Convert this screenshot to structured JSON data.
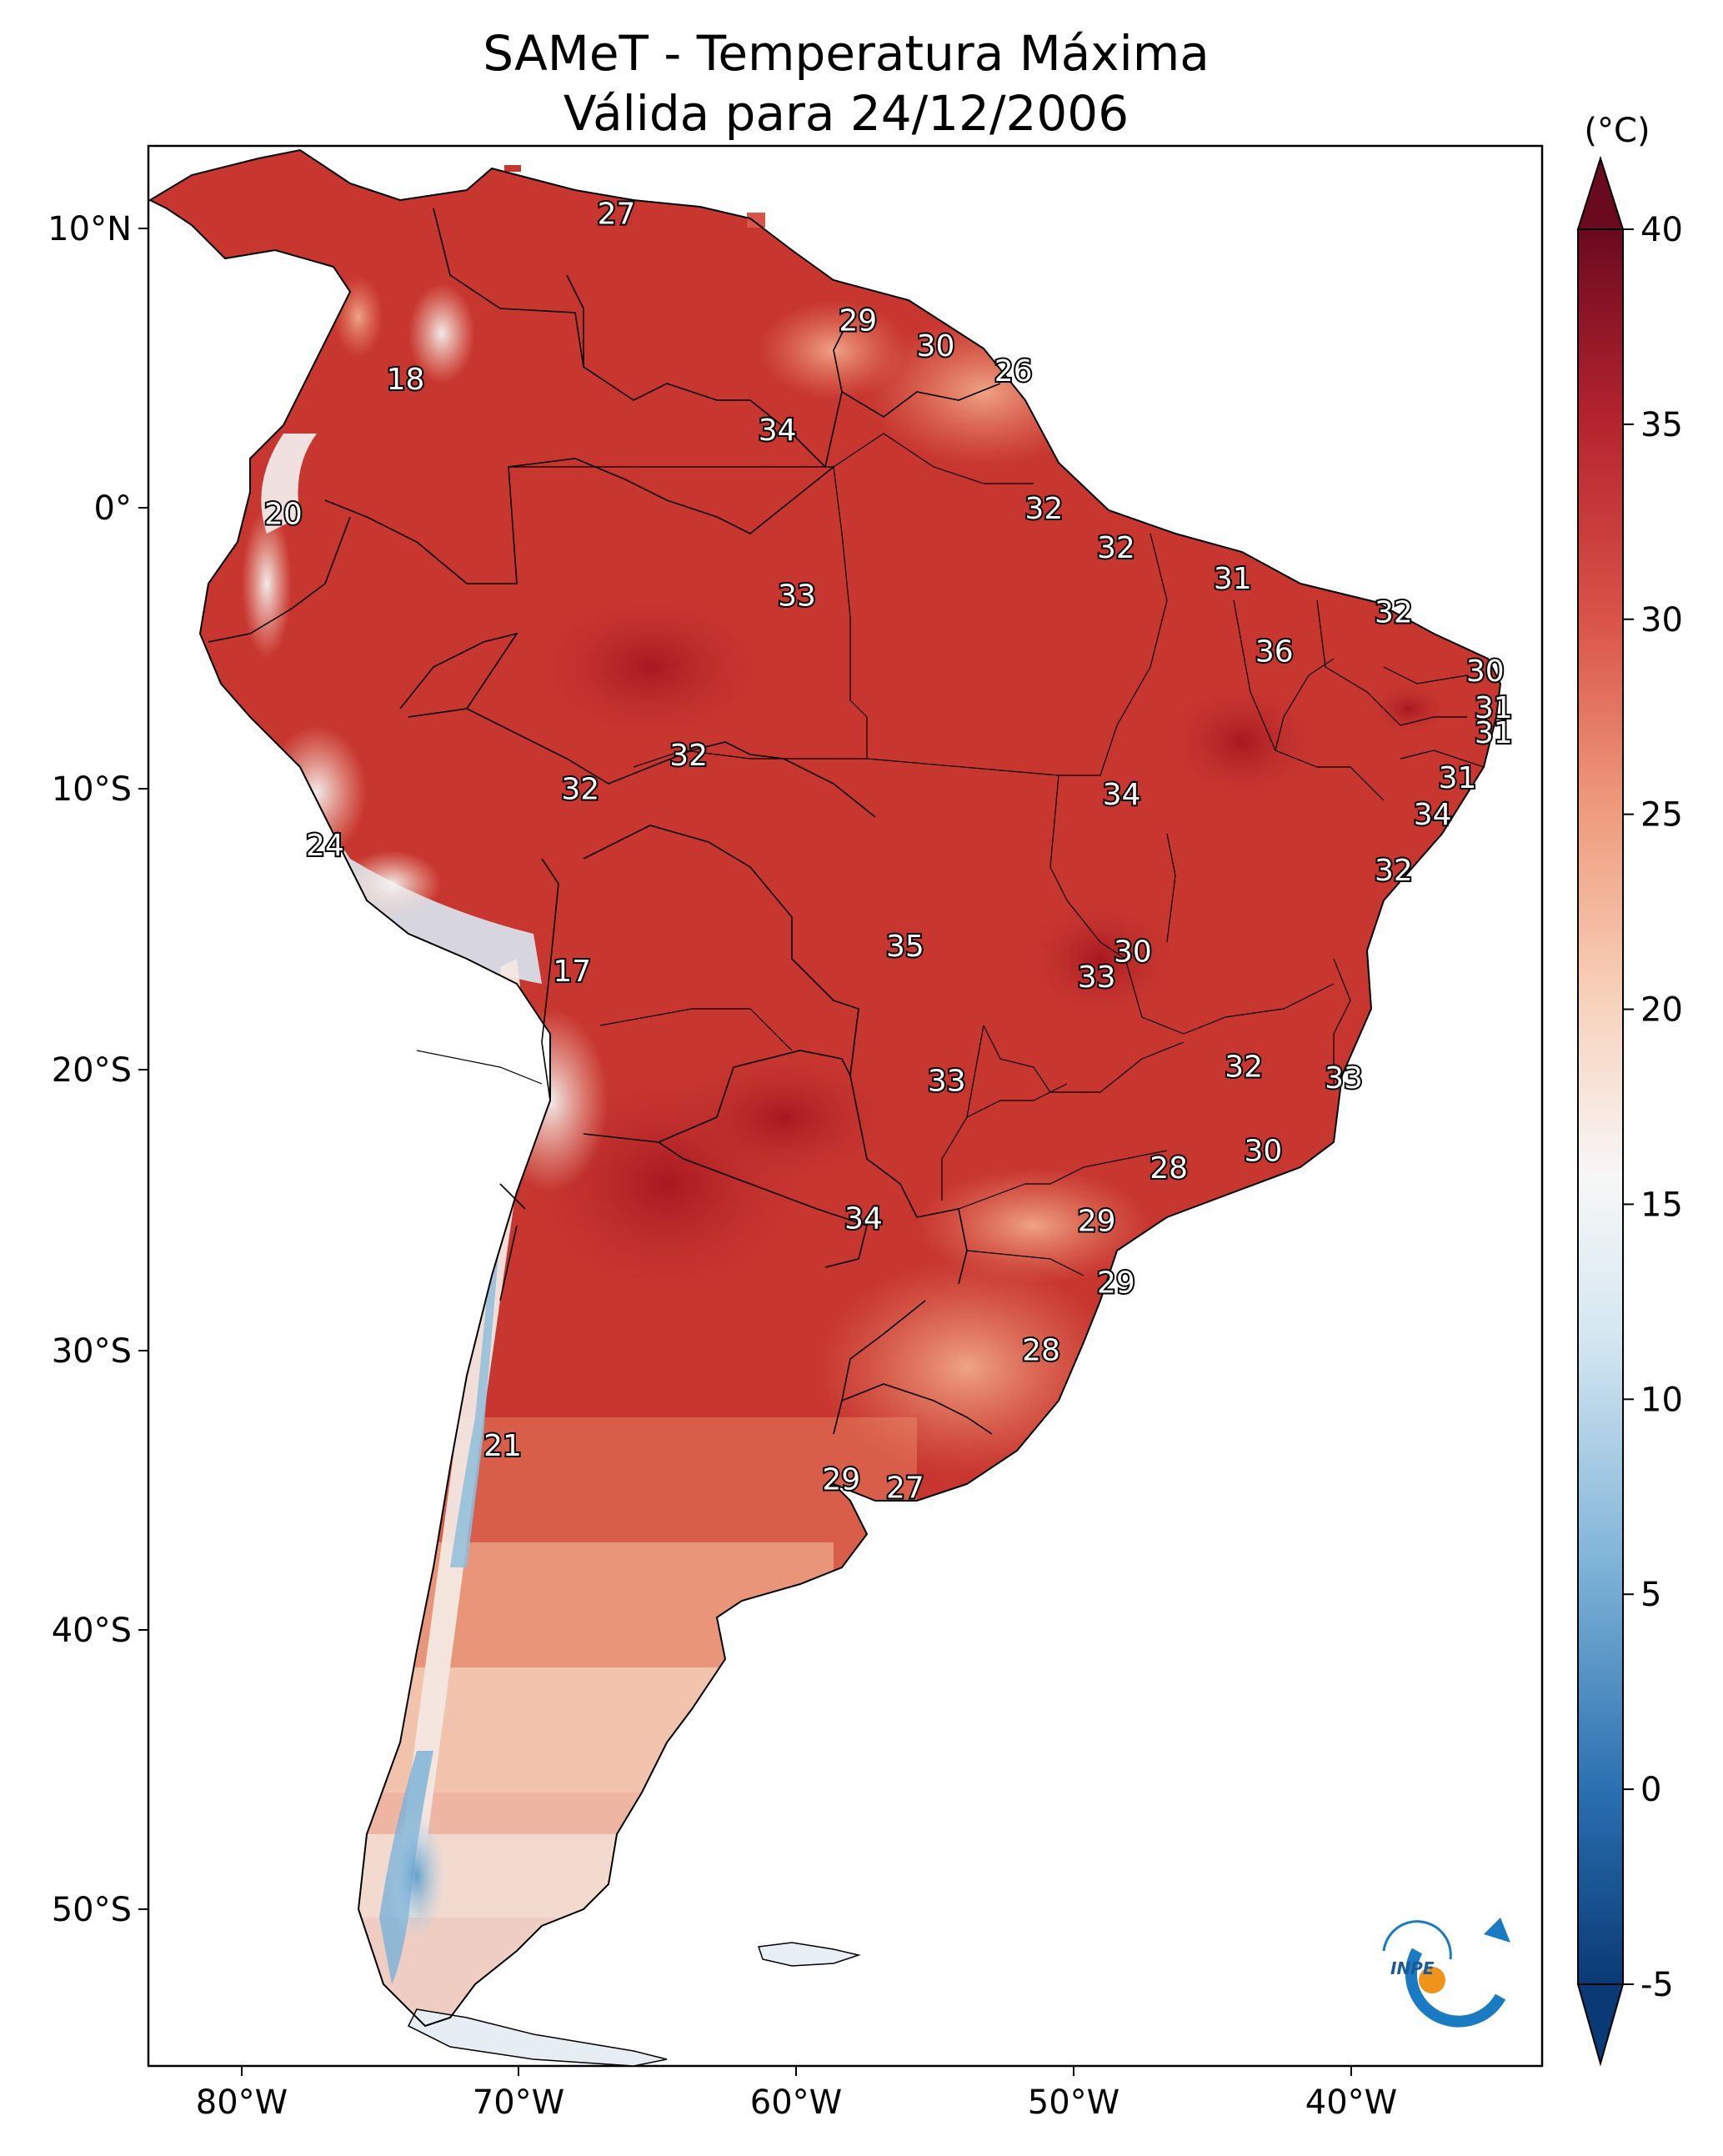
{
  "title": {
    "line1": "SAMeT - Temperatura Máxima",
    "line2": "Válida para 24/12/2006"
  },
  "colorbar": {
    "unit": "(°C)",
    "ticks": [
      "40",
      "35",
      "30",
      "25",
      "20",
      "15",
      "10",
      "5",
      "0",
      "-5"
    ],
    "min": -5,
    "max": 40,
    "colors": [
      "#0a3a75",
      "#2a6fb0",
      "#7fb4d8",
      "#d5e7f1",
      "#f7f7f7",
      "#f7d2bb",
      "#ee9b7c",
      "#d95247",
      "#b5242f",
      "#6a0a1f"
    ]
  },
  "axes": {
    "lat_labels": [
      "10°N",
      "0°",
      "10°S",
      "20°S",
      "30°S",
      "40°S",
      "50°S"
    ],
    "lon_labels": [
      "80°W",
      "70°W",
      "60°W",
      "50°W",
      "40°W"
    ]
  },
  "station_labels": [
    {
      "value": "27",
      "lon": -66.5,
      "lat": 10.5
    },
    {
      "value": "29",
      "lon": -57.8,
      "lat": 6.7
    },
    {
      "value": "30",
      "lon": -55.0,
      "lat": 5.8
    },
    {
      "value": "26",
      "lon": -52.2,
      "lat": 4.9
    },
    {
      "value": "18",
      "lon": -74.1,
      "lat": 4.6
    },
    {
      "value": "34",
      "lon": -60.7,
      "lat": 2.8
    },
    {
      "value": "20",
      "lon": -78.5,
      "lat": -0.2
    },
    {
      "value": "32",
      "lon": -51.1,
      "lat": 0.0
    },
    {
      "value": "32",
      "lon": -48.5,
      "lat": -1.4
    },
    {
      "value": "31",
      "lon": -44.3,
      "lat": -2.5
    },
    {
      "value": "33",
      "lon": -60.0,
      "lat": -3.1
    },
    {
      "value": "32",
      "lon": -38.5,
      "lat": -3.7
    },
    {
      "value": "36",
      "lon": -42.8,
      "lat": -5.1
    },
    {
      "value": "30",
      "lon": -35.2,
      "lat": -5.8
    },
    {
      "value": "31",
      "lon": -34.9,
      "lat": -7.1
    },
    {
      "value": "31",
      "lon": -34.9,
      "lat": -8.0
    },
    {
      "value": "32",
      "lon": -63.9,
      "lat": -8.8
    },
    {
      "value": "32",
      "lon": -67.8,
      "lat": -10.0
    },
    {
      "value": "31",
      "lon": -36.2,
      "lat": -9.6
    },
    {
      "value": "34",
      "lon": -48.3,
      "lat": -10.2
    },
    {
      "value": "34",
      "lon": -37.1,
      "lat": -10.9
    },
    {
      "value": "24",
      "lon": -77.0,
      "lat": -12.0
    },
    {
      "value": "32",
      "lon": -38.5,
      "lat": -12.9
    },
    {
      "value": "35",
      "lon": -56.1,
      "lat": -15.6
    },
    {
      "value": "30",
      "lon": -47.9,
      "lat": -15.8
    },
    {
      "value": "33",
      "lon": -49.2,
      "lat": -16.7
    },
    {
      "value": "17",
      "lon": -68.1,
      "lat": -16.5
    },
    {
      "value": "32",
      "lon": -43.9,
      "lat": -19.9
    },
    {
      "value": "33",
      "lon": -40.3,
      "lat": -20.3
    },
    {
      "value": "33",
      "lon": -54.6,
      "lat": -20.4
    },
    {
      "value": "30",
      "lon": -43.2,
      "lat": -22.9
    },
    {
      "value": "28",
      "lon": -46.6,
      "lat": -23.5
    },
    {
      "value": "34",
      "lon": -57.6,
      "lat": -25.3
    },
    {
      "value": "29",
      "lon": -49.2,
      "lat": -25.4
    },
    {
      "value": "29",
      "lon": -48.5,
      "lat": -27.6
    },
    {
      "value": "28",
      "lon": -51.2,
      "lat": -30.0
    },
    {
      "value": "21",
      "lon": -70.6,
      "lat": -33.4
    },
    {
      "value": "29",
      "lon": -58.4,
      "lat": -34.6
    },
    {
      "value": "27",
      "lon": -56.1,
      "lat": -34.9
    }
  ],
  "logo": {
    "text": "INPE"
  }
}
